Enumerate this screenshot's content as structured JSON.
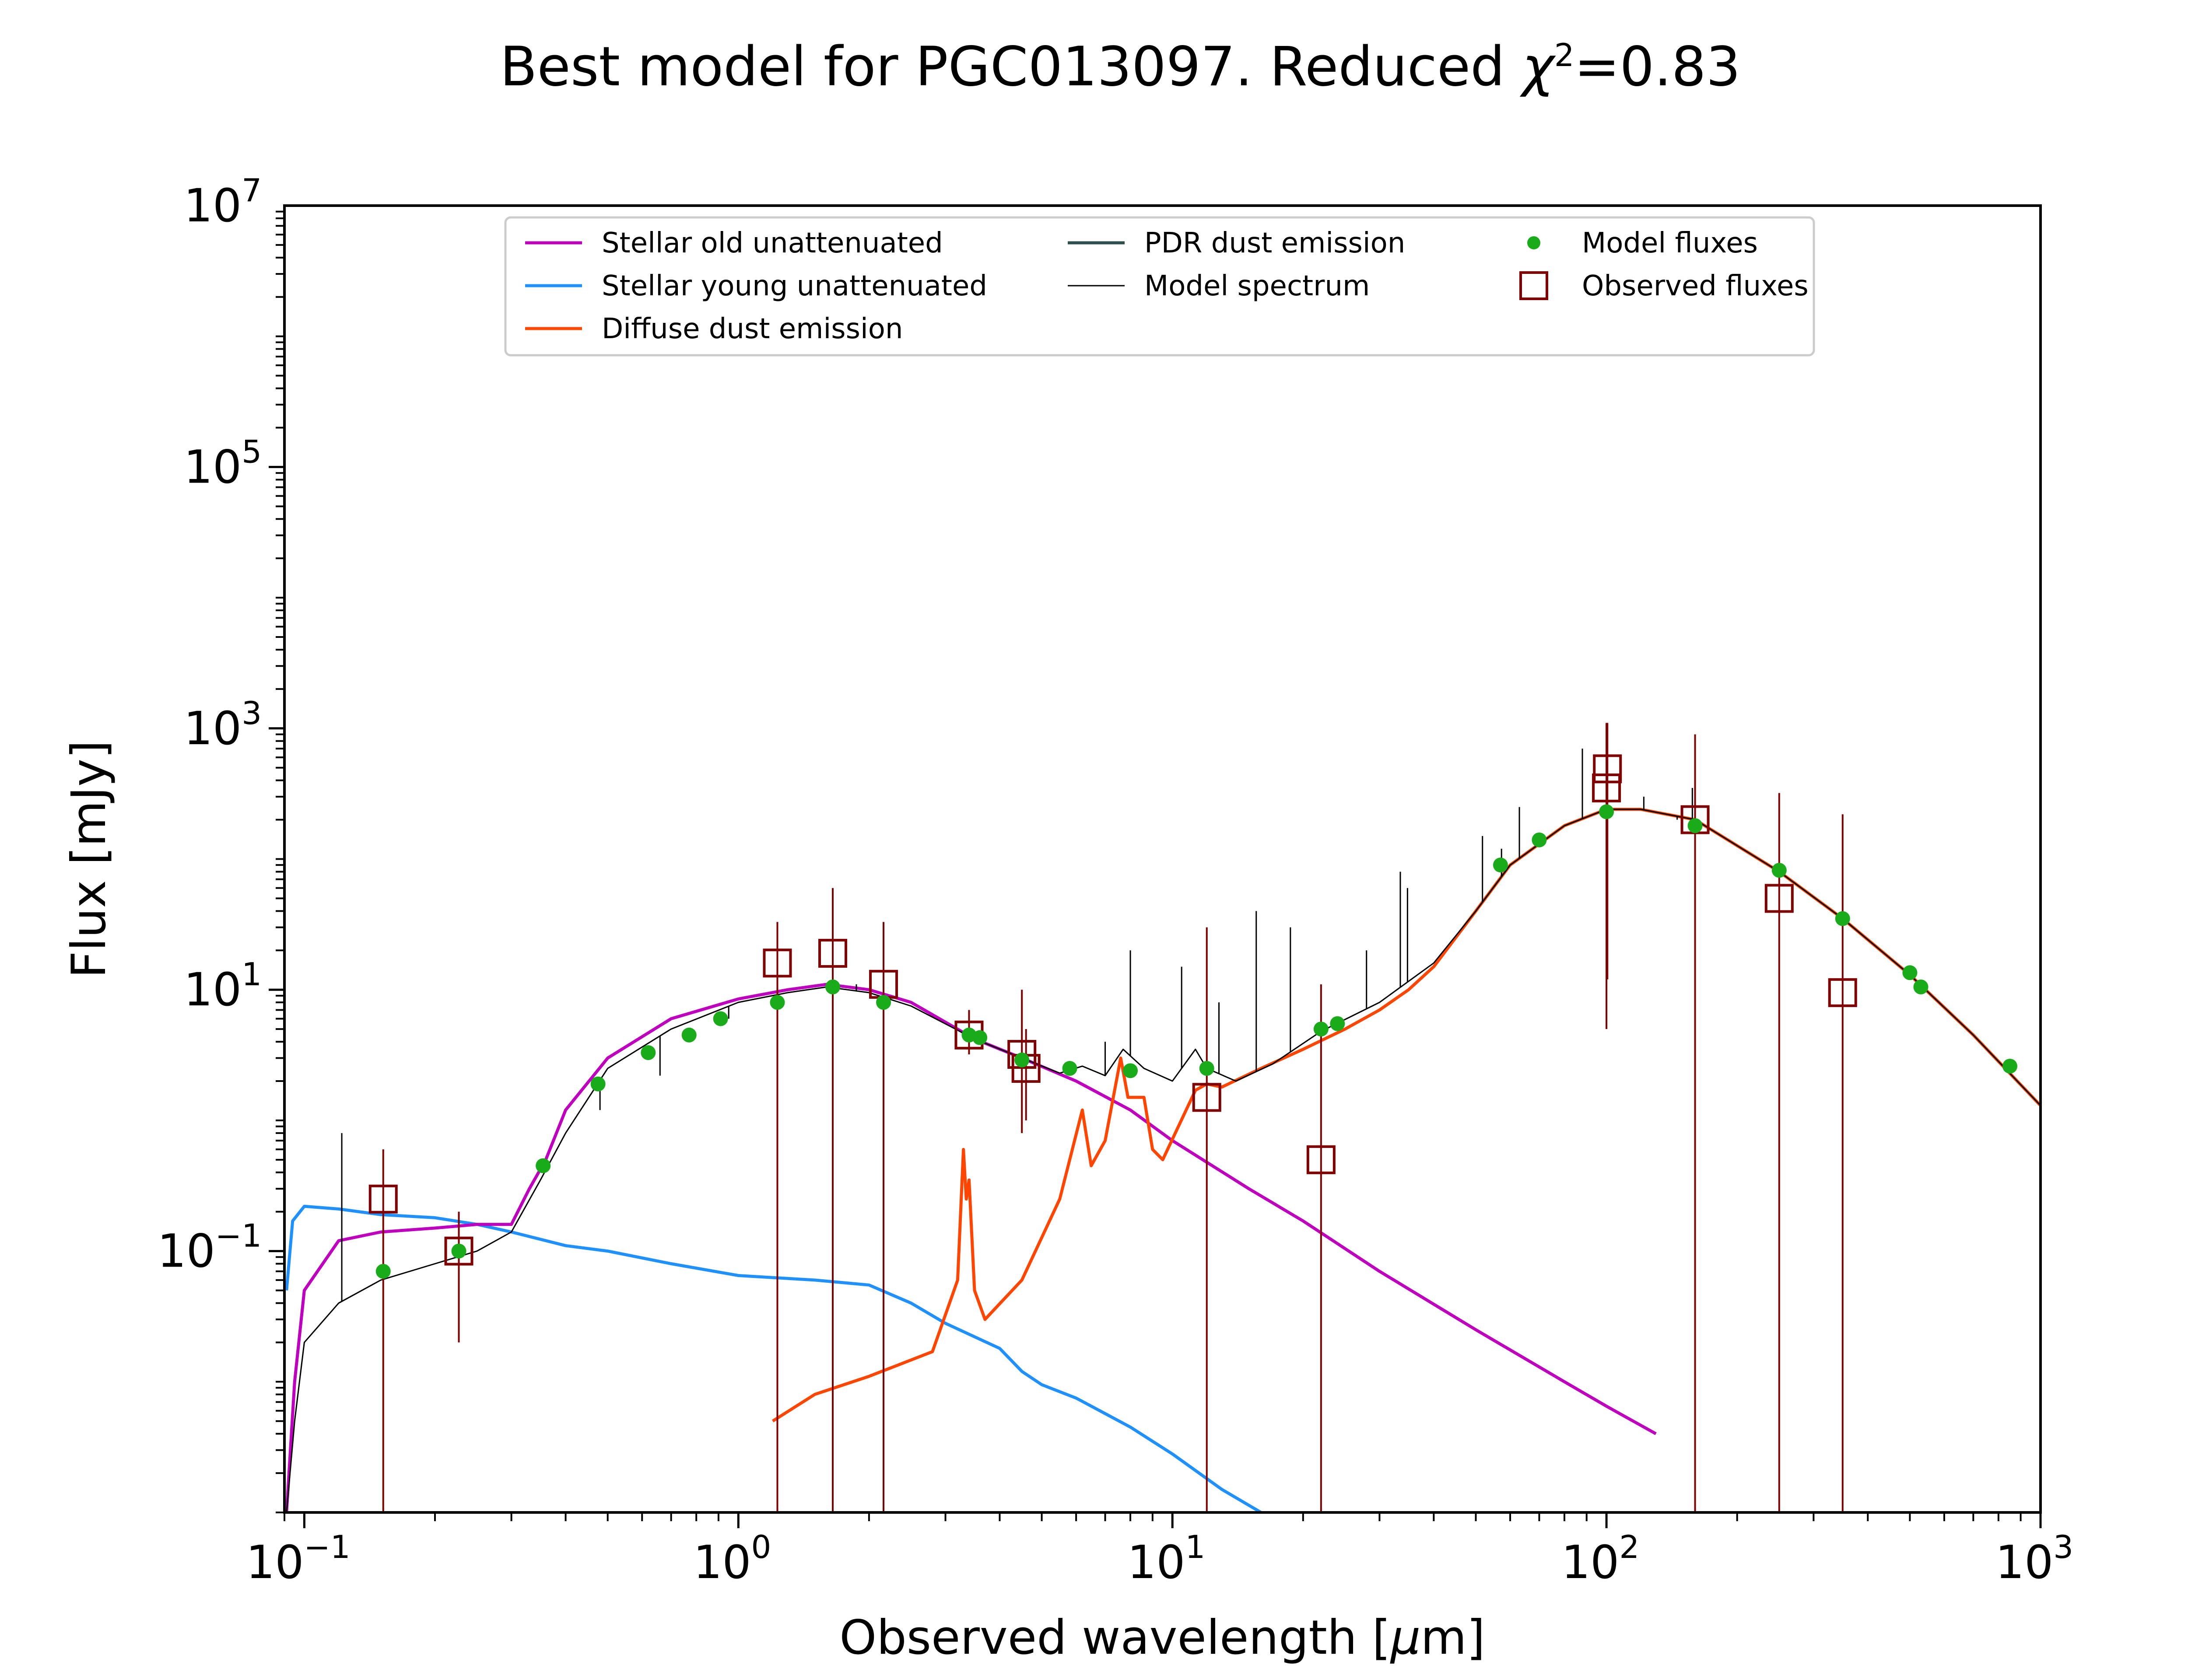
{
  "chart_data": {
    "type": "line",
    "title": "Best model for PGC013097. Reduced χ²=0.83",
    "title_parts": {
      "prefix": "Best model for PGC013097. Reduced ",
      "chi": "χ",
      "sup": "2",
      "suffix": "=0.83"
    },
    "xlabel": "Observed wavelength [μm]",
    "xlabel_parts": {
      "prefix": "Observed wavelength [",
      "mu": "μ",
      "suffix": "m]"
    },
    "ylabel": "Flux [mJy]",
    "x_scale": "log",
    "y_scale": "log",
    "xlim": [
      0.09,
      1000
    ],
    "ylim": [
      0.001,
      10000000
    ],
    "x_ticks": [
      {
        "value": 0.1,
        "base": "10",
        "exp": "−1"
      },
      {
        "value": 1,
        "base": "10",
        "exp": "0"
      },
      {
        "value": 10,
        "base": "10",
        "exp": "1"
      },
      {
        "value": 100,
        "base": "10",
        "exp": "2"
      },
      {
        "value": 1000,
        "base": "10",
        "exp": "3"
      }
    ],
    "y_ticks": [
      {
        "value": 0.1,
        "base": "10",
        "exp": "−1"
      },
      {
        "value": 10,
        "base": "10",
        "exp": "1"
      },
      {
        "value": 1000,
        "base": "10",
        "exp": "3"
      },
      {
        "value": 100000,
        "base": "10",
        "exp": "5"
      },
      {
        "value": 10000000,
        "base": "10",
        "exp": "7"
      }
    ],
    "grid": false,
    "legend_position": "top",
    "legend": [
      {
        "key": "old",
        "label": "Stellar old unattenuated",
        "style": "line",
        "color": "#BF00BF"
      },
      {
        "key": "young",
        "label": "Stellar young unattenuated",
        "style": "line",
        "color": "#1E90FF"
      },
      {
        "key": "diffuse",
        "label": "Diffuse dust emission",
        "style": "line",
        "color": "#FF4500"
      },
      {
        "key": "pdr",
        "label": "PDR dust emission",
        "style": "line",
        "color": "#2F4F4F"
      },
      {
        "key": "model",
        "label": "Model spectrum",
        "style": "thin-line",
        "color": "#000000"
      },
      {
        "key": "mfluxes",
        "label": "Model fluxes",
        "style": "dot",
        "color": "#1AAB1A"
      },
      {
        "key": "ofluxes",
        "label": "Observed fluxes",
        "style": "square",
        "color": "#800000"
      }
    ],
    "series": [
      {
        "key": "young",
        "color": "#1E90FF",
        "points": [
          [
            0.091,
            0.05
          ],
          [
            0.094,
            0.17
          ],
          [
            0.1,
            0.22
          ],
          [
            0.12,
            0.21
          ],
          [
            0.15,
            0.19
          ],
          [
            0.2,
            0.18
          ],
          [
            0.25,
            0.16
          ],
          [
            0.3,
            0.14
          ],
          [
            0.4,
            0.11
          ],
          [
            0.5,
            0.1
          ],
          [
            0.7,
            0.08
          ],
          [
            1.0,
            0.065
          ],
          [
            1.5,
            0.06
          ],
          [
            2.0,
            0.055
          ],
          [
            2.5,
            0.04
          ],
          [
            3.0,
            0.028
          ],
          [
            4.0,
            0.018
          ],
          [
            4.5,
            0.012
          ],
          [
            5.0,
            0.0095
          ],
          [
            6.0,
            0.0075
          ],
          [
            8.0,
            0.0045
          ],
          [
            10.0,
            0.0028
          ],
          [
            13.0,
            0.0015
          ],
          [
            16.0,
            0.001
          ]
        ]
      },
      {
        "key": "old",
        "color": "#BF00BF",
        "points": [
          [
            0.091,
            0.001
          ],
          [
            0.095,
            0.01
          ],
          [
            0.1,
            0.05
          ],
          [
            0.12,
            0.12
          ],
          [
            0.15,
            0.14
          ],
          [
            0.2,
            0.15
          ],
          [
            0.25,
            0.16
          ],
          [
            0.3,
            0.16
          ],
          [
            0.33,
            0.3
          ],
          [
            0.36,
            0.5
          ],
          [
            0.4,
            1.2
          ],
          [
            0.5,
            3.0
          ],
          [
            0.7,
            6.0
          ],
          [
            1.0,
            8.5
          ],
          [
            1.3,
            10.0
          ],
          [
            1.6,
            11.0
          ],
          [
            2.0,
            10.0
          ],
          [
            2.5,
            8.0
          ],
          [
            3.5,
            4.2
          ],
          [
            4.5,
            3.0
          ],
          [
            6.0,
            2.0
          ],
          [
            8.0,
            1.2
          ],
          [
            10.0,
            0.7
          ],
          [
            15.0,
            0.3
          ],
          [
            20.0,
            0.17
          ],
          [
            30.0,
            0.07
          ],
          [
            50.0,
            0.025
          ],
          [
            80.0,
            0.01
          ],
          [
            100.0,
            0.0065
          ],
          [
            130.0,
            0.004
          ]
        ]
      },
      {
        "key": "diffuse",
        "color": "#FF4500",
        "points": [
          [
            1.2,
            0.005
          ],
          [
            1.5,
            0.008
          ],
          [
            2.0,
            0.011
          ],
          [
            2.8,
            0.017
          ],
          [
            3.2,
            0.06
          ],
          [
            3.3,
            0.6
          ],
          [
            3.35,
            0.25
          ],
          [
            3.4,
            0.35
          ],
          [
            3.5,
            0.05
          ],
          [
            3.7,
            0.03
          ],
          [
            4.5,
            0.06
          ],
          [
            5.5,
            0.25
          ],
          [
            6.2,
            1.2
          ],
          [
            6.5,
            0.45
          ],
          [
            7.0,
            0.7
          ],
          [
            7.6,
            3.0
          ],
          [
            7.9,
            1.5
          ],
          [
            8.6,
            1.5
          ],
          [
            9.0,
            0.6
          ],
          [
            9.5,
            0.5
          ],
          [
            11.3,
            1.7
          ],
          [
            12.0,
            1.9
          ],
          [
            13.0,
            1.8
          ],
          [
            16.0,
            2.5
          ],
          [
            20.0,
            3.5
          ],
          [
            25.0,
            5.0
          ],
          [
            30.0,
            7.0
          ],
          [
            35.0,
            10.0
          ],
          [
            40.0,
            15.0
          ],
          [
            50.0,
            40.0
          ],
          [
            60.0,
            90.0
          ],
          [
            80.0,
            180.0
          ],
          [
            100.0,
            240.0
          ],
          [
            120.0,
            240.0
          ],
          [
            160.0,
            200.0
          ],
          [
            250.0,
            80.0
          ],
          [
            350.0,
            35.0
          ],
          [
            500.0,
            13.0
          ],
          [
            700.0,
            4.5
          ],
          [
            1000.0,
            1.3
          ]
        ]
      },
      {
        "key": "model",
        "color": "#000000",
        "points": [
          [
            0.091,
            0.001
          ],
          [
            0.095,
            0.005
          ],
          [
            0.1,
            0.02
          ],
          [
            0.12,
            0.04
          ],
          [
            0.15,
            0.06
          ],
          [
            0.2,
            0.08
          ],
          [
            0.25,
            0.1
          ],
          [
            0.3,
            0.14
          ],
          [
            0.35,
            0.35
          ],
          [
            0.4,
            0.8
          ],
          [
            0.5,
            2.5
          ],
          [
            0.7,
            5.0
          ],
          [
            1.0,
            8.0
          ],
          [
            1.3,
            9.5
          ],
          [
            1.6,
            10.5
          ],
          [
            2.0,
            9.5
          ],
          [
            2.5,
            7.5
          ],
          [
            3.5,
            4.2
          ],
          [
            4.5,
            3.0
          ],
          [
            5.5,
            2.3
          ],
          [
            6.2,
            2.6
          ],
          [
            7.0,
            2.2
          ],
          [
            7.7,
            3.5
          ],
          [
            8.6,
            2.5
          ],
          [
            10.0,
            2.0
          ],
          [
            11.3,
            3.5
          ],
          [
            12.0,
            2.5
          ],
          [
            14.0,
            2.0
          ],
          [
            17.0,
            2.7
          ],
          [
            22.0,
            4.8
          ],
          [
            30.0,
            8.0
          ],
          [
            40.0,
            16.0
          ],
          [
            50.0,
            40.0
          ],
          [
            60.0,
            90.0
          ],
          [
            80.0,
            180.0
          ],
          [
            100.0,
            240.0
          ],
          [
            120.0,
            240.0
          ],
          [
            160.0,
            200.0
          ],
          [
            250.0,
            80.0
          ],
          [
            350.0,
            35.0
          ],
          [
            500.0,
            13.0
          ],
          [
            700.0,
            4.5
          ],
          [
            1000.0,
            1.3
          ]
        ]
      }
    ],
    "spectral_lines": [
      [
        0.122,
        0.8
      ],
      [
        0.48,
        1.2
      ],
      [
        0.5,
        2.5
      ],
      [
        0.66,
        2.2
      ],
      [
        0.95,
        6.0
      ],
      [
        1.87,
        11.0
      ],
      [
        7.0,
        4.0
      ],
      [
        8.0,
        20.0
      ],
      [
        10.5,
        15.0
      ],
      [
        12.8,
        8.0
      ],
      [
        15.6,
        40.0
      ],
      [
        18.7,
        30.0
      ],
      [
        28.0,
        20.0
      ],
      [
        33.5,
        80.0
      ],
      [
        34.8,
        60.0
      ],
      [
        51.8,
        150.0
      ],
      [
        57.3,
        120.0
      ],
      [
        63.0,
        250.0
      ],
      [
        88.0,
        700.0
      ],
      [
        121.9,
        300.0
      ],
      [
        145.5,
        200.0
      ],
      [
        157.7,
        350.0
      ]
    ],
    "model_fluxes": [
      [
        0.152,
        0.07
      ],
      [
        0.227,
        0.1
      ],
      [
        0.355,
        0.45
      ],
      [
        0.475,
        1.9
      ],
      [
        0.62,
        3.3
      ],
      [
        0.77,
        4.5
      ],
      [
        0.91,
        6.0
      ],
      [
        1.23,
        8.0
      ],
      [
        1.65,
        10.5
      ],
      [
        2.16,
        8.0
      ],
      [
        3.4,
        4.5
      ],
      [
        3.6,
        4.3
      ],
      [
        4.5,
        2.9
      ],
      [
        5.8,
        2.5
      ],
      [
        8.0,
        2.4
      ],
      [
        12.0,
        2.5
      ],
      [
        22.0,
        5.0
      ],
      [
        24.0,
        5.5
      ],
      [
        57.0,
        90.0
      ],
      [
        70.0,
        140.0
      ],
      [
        100.0,
        230.0
      ],
      [
        160.0,
        180.0
      ],
      [
        250.0,
        82.0
      ],
      [
        350.0,
        35.0
      ],
      [
        500.0,
        13.5
      ],
      [
        530.0,
        10.5
      ],
      [
        850.0,
        2.6
      ]
    ],
    "observed_fluxes": [
      [
        0.152,
        0.25,
        0.001,
        0.6
      ],
      [
        0.227,
        0.1,
        0.02,
        0.2
      ],
      [
        1.23,
        16.0,
        0.001,
        33.0
      ],
      [
        1.65,
        19.0,
        0.001,
        60.0
      ],
      [
        2.16,
        11.0,
        0.001,
        33.0
      ],
      [
        3.4,
        4.5,
        3.2,
        7.0
      ],
      [
        4.5,
        3.2,
        0.8,
        10.0
      ],
      [
        4.6,
        2.5,
        1.0,
        5.0
      ],
      [
        12.0,
        1.5,
        0.001,
        30.0
      ],
      [
        22.0,
        0.5,
        0.001,
        11.0
      ],
      [
        100.0,
        350.0,
        5.0,
        1100.0
      ],
      [
        100.5,
        490.0,
        12.0,
        1100.0
      ],
      [
        160.0,
        200.0,
        0.001,
        900.0
      ],
      [
        250.0,
        50.0,
        0.001,
        320.0
      ],
      [
        350.0,
        9.5,
        0.001,
        220.0
      ]
    ]
  }
}
